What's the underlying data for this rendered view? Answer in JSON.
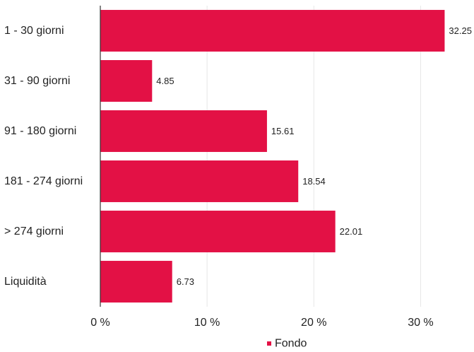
{
  "chart_data": {
    "type": "bar",
    "orientation": "horizontal",
    "categories": [
      "1 - 30 giorni",
      "31 - 90 giorni",
      "91 - 180 giorni",
      "181 - 274 giorni",
      "> 274 giorni",
      "Liquidità"
    ],
    "series": [
      {
        "name": "Fondo",
        "values": [
          32.25,
          4.85,
          15.61,
          18.54,
          22.01,
          6.73
        ],
        "color": "#e31145"
      }
    ],
    "value_labels": [
      "32.25",
      "4.85",
      "15.61",
      "18.54",
      "22.01",
      "6.73"
    ],
    "xlim": [
      0,
      35
    ],
    "xticks": [
      0,
      10,
      20,
      30
    ],
    "xtick_labels": [
      "0 %",
      "10 %",
      "20 %",
      "30 %"
    ],
    "grid": true,
    "legend_position": "bottom-center"
  }
}
